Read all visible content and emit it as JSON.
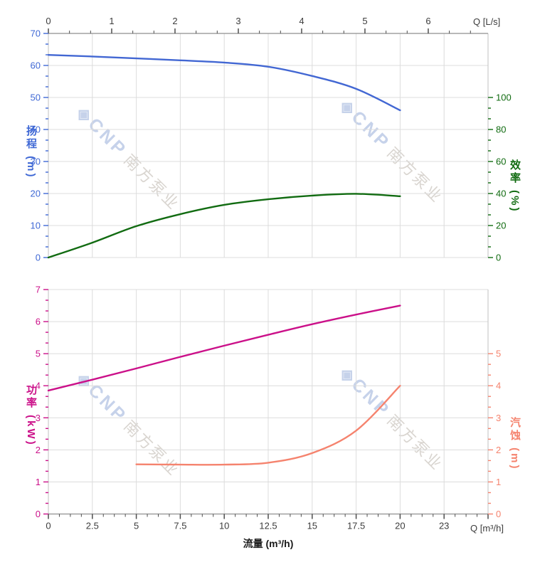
{
  "watermark": {
    "logo": "◈",
    "brand": "CNP",
    "company": "南方泵业"
  },
  "axes": {
    "top_x": {
      "unit_label": "Q [L/s]",
      "tick_labels": [
        "0",
        "1",
        "2",
        "3",
        "4",
        "5",
        "6"
      ],
      "color": "#3c3c3c"
    },
    "bottom_x": {
      "unit_label": "Q [m³/h]",
      "axis_title": "流量 (m³/h)",
      "tick_labels": [
        "0",
        "2.5",
        "5",
        "7.5",
        "10",
        "12.5",
        "15",
        "17.5",
        "20",
        "23"
      ],
      "color": "#3c3c3c"
    },
    "head": {
      "title": "扬程 (m)",
      "tick_labels": [
        "0",
        "10",
        "20",
        "30",
        "40",
        "50",
        "60",
        "70"
      ],
      "color": "#3f68d5"
    },
    "efficiency": {
      "title": "效率 (%)",
      "tick_labels": [
        "0",
        "20",
        "40",
        "60",
        "80",
        "100"
      ],
      "color": "#116b11"
    },
    "power": {
      "title": "功率 (kW)",
      "tick_labels": [
        "0",
        "1",
        "2",
        "3",
        "4",
        "5",
        "6",
        "7"
      ],
      "color": "#cb1089"
    },
    "npsh": {
      "title": "汽蚀 (m)",
      "tick_labels": [
        "0",
        "1",
        "2",
        "3",
        "4",
        "5"
      ],
      "color": "#f5836e"
    }
  },
  "chart_data": {
    "type": "line",
    "xlabel": "流量 (m³/h)",
    "x_secondary_axis": {
      "label": "Q [L/s]",
      "ticks": [
        0,
        1,
        2,
        3,
        4,
        5,
        6
      ],
      "m3h_per_unit": 3.6
    },
    "x_range_m3h": [
      0,
      25
    ],
    "x_major_step": 2.5,
    "grid": true,
    "panels": [
      {
        "name": "top-panel",
        "left_axis": {
          "label": "扬程 (m)",
          "range": [
            0,
            70
          ],
          "major_step": 10
        },
        "right_axis": {
          "label": "效率 (%)",
          "range": [
            0,
            140
          ],
          "major_step": 20,
          "tick_max": 100
        },
        "series": [
          {
            "name": "扬程",
            "axis": "left",
            "color": "#4267d3",
            "points": [
              [
                0,
                63.3
              ],
              [
                2.5,
                62.8
              ],
              [
                5,
                62.2
              ],
              [
                7.5,
                61.6
              ],
              [
                10,
                60.9
              ],
              [
                12.5,
                59.6
              ],
              [
                15,
                56.7
              ],
              [
                17.5,
                52.7
              ],
              [
                20,
                46.0
              ]
            ]
          },
          {
            "name": "效率",
            "axis": "right",
            "color": "#116b11",
            "points": [
              [
                0,
                0
              ],
              [
                2.5,
                9.3
              ],
              [
                5,
                19.6
              ],
              [
                7.5,
                27.1
              ],
              [
                10,
                32.9
              ],
              [
                12.5,
                36.4
              ],
              [
                15,
                38.7
              ],
              [
                17.5,
                39.8
              ],
              [
                20,
                38.3
              ]
            ]
          }
        ]
      },
      {
        "name": "bottom-panel",
        "left_axis": {
          "label": "功率 (kW)",
          "range": [
            0,
            7
          ],
          "major_step": 1
        },
        "right_axis": {
          "label": "汽蚀 (m)",
          "range": [
            0,
            7
          ],
          "major_step": 1,
          "tick_max": 5
        },
        "series": [
          {
            "name": "功率",
            "axis": "left",
            "color": "#cb1089",
            "points": [
              [
                0,
                3.85
              ],
              [
                2.5,
                4.19
              ],
              [
                5,
                4.54
              ],
              [
                7.5,
                4.9
              ],
              [
                10,
                5.25
              ],
              [
                12.5,
                5.59
              ],
              [
                15,
                5.92
              ],
              [
                17.5,
                6.22
              ],
              [
                20,
                6.5
              ]
            ]
          },
          {
            "name": "汽蚀",
            "axis": "right",
            "color": "#f5836e",
            "points": [
              [
                5,
                1.55
              ],
              [
                7.5,
                1.54
              ],
              [
                10,
                1.54
              ],
              [
                12.5,
                1.6
              ],
              [
                15,
                1.9
              ],
              [
                17.5,
                2.6
              ],
              [
                20,
                4.0
              ]
            ]
          }
        ]
      }
    ]
  },
  "layout_colors": {
    "grid": "#dcdcdc",
    "border": "#c2c2c2",
    "x_axis_line": "#8f8f8f",
    "x_tick": "#4d4d4d"
  }
}
